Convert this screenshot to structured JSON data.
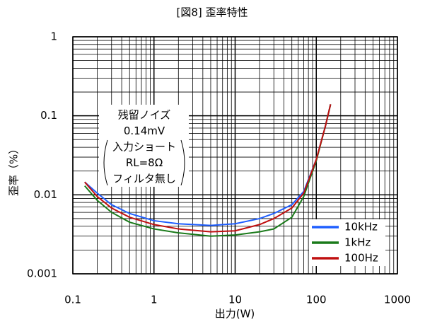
{
  "chart_data": {
    "type": "line",
    "title": "[図8] 歪率特性",
    "x_label": "出力(W)",
    "y_label": "歪率（%）",
    "x": [
      0.14,
      0.2,
      0.3,
      0.5,
      1,
      2,
      5,
      10,
      20,
      30,
      50,
      70,
      100,
      130,
      150
    ],
    "series": [
      {
        "name": "10kHz",
        "color": "#1f5fff",
        "values": [
          0.0145,
          0.0105,
          0.0075,
          0.0058,
          0.0047,
          0.0043,
          0.0041,
          0.0043,
          0.005,
          0.0058,
          0.0075,
          0.011,
          0.028,
          0.075,
          0.14
        ]
      },
      {
        "name": "1kHz",
        "color": "#1a7a1a",
        "values": [
          0.013,
          0.0085,
          0.006,
          0.0045,
          0.0037,
          0.0033,
          0.003,
          0.0031,
          0.0034,
          0.0037,
          0.0052,
          0.0095,
          0.027,
          0.075,
          0.14
        ]
      },
      {
        "name": "100Hz",
        "color": "#c01010",
        "values": [
          0.0145,
          0.0095,
          0.0068,
          0.0052,
          0.0042,
          0.0037,
          0.0034,
          0.0035,
          0.0042,
          0.005,
          0.0068,
          0.0105,
          0.028,
          0.075,
          0.14
        ]
      }
    ],
    "xlim": [
      0.1,
      1000
    ],
    "ylim": [
      0.001,
      1
    ],
    "xticks": [
      0.1,
      1,
      10,
      100,
      1000
    ],
    "yticks": [
      0.001,
      0.01,
      0.1,
      1
    ],
    "log_x": true,
    "log_y": true,
    "grid": true,
    "minor_grid": true,
    "legend": "lower-right",
    "annotation": [
      "残留ノイズ",
      "0.14mV",
      "入力ショート",
      "RL=8Ω",
      "フィルタ無し"
    ]
  }
}
